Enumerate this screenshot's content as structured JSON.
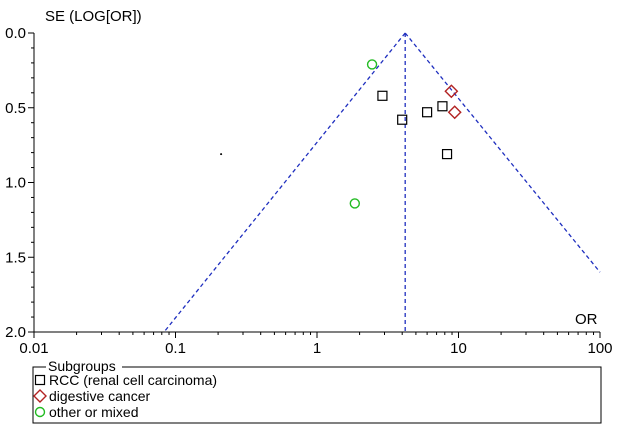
{
  "chart_data": {
    "type": "scatter",
    "subtype": "funnel-plot",
    "title": "",
    "ylabel": "SE (LOG[OR])",
    "xlabel": "OR",
    "x_scale": "log",
    "x_range": [
      0.01,
      100
    ],
    "y_range": [
      0.0,
      2.0
    ],
    "y_inverted": true,
    "x_ticks": [
      "0.01",
      "0.1",
      "1",
      "10",
      "100"
    ],
    "y_ticks": [
      "0.0",
      "0.5",
      "1.0",
      "1.5",
      "2.0"
    ],
    "pooled_or": 4.2,
    "funnel_limits": {
      "lower_at_se2": 0.083,
      "upper_at_se1_6": 100
    },
    "grid": false,
    "legend_title": "Subgroups",
    "legend_placement": "bottom",
    "series": [
      {
        "name": "RCC (renal cell carcinoma)",
        "marker": "square",
        "color": "#000000",
        "points": [
          {
            "or": 2.9,
            "se": 0.42
          },
          {
            "or": 4.0,
            "se": 0.58
          },
          {
            "or": 6.0,
            "se": 0.53
          },
          {
            "or": 7.7,
            "se": 0.49
          },
          {
            "or": 8.3,
            "se": 0.81
          }
        ]
      },
      {
        "name": "digestive cancer",
        "marker": "diamond",
        "color": "#b22222",
        "points": [
          {
            "or": 8.9,
            "se": 0.39
          },
          {
            "or": 9.4,
            "se": 0.53
          }
        ]
      },
      {
        "name": "other or mixed",
        "marker": "circle",
        "color": "#22bb22",
        "points": [
          {
            "or": 2.45,
            "se": 0.21
          },
          {
            "or": 1.85,
            "se": 1.14
          }
        ]
      }
    ],
    "stray_points": [
      {
        "or": 0.21,
        "se": 0.81
      }
    ],
    "colors": {
      "axis": "#000000",
      "funnel_line": "#1f2fbf"
    }
  }
}
